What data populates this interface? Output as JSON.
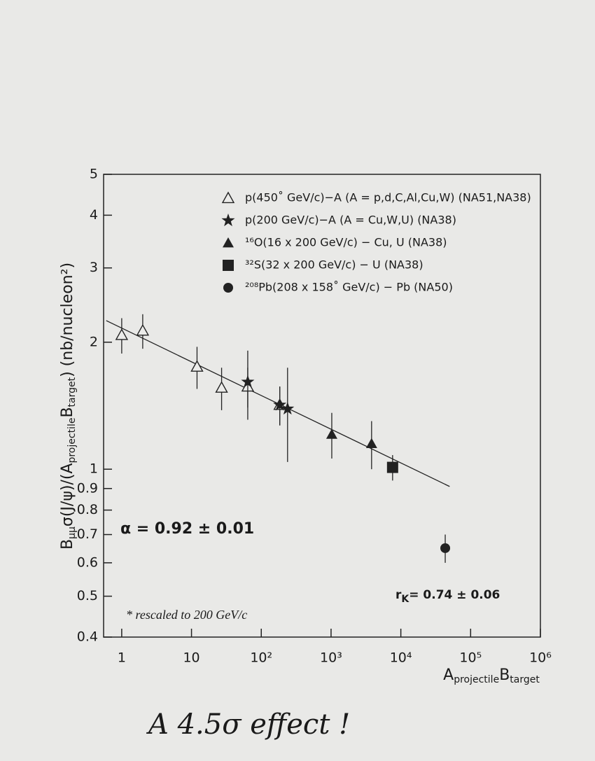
{
  "chart_data": {
    "type": "scatter",
    "x_label": [
      "A",
      "projectile",
      "B",
      "target"
    ],
    "y_label": [
      "B",
      "μμ",
      "σ(J/ψ)/(A",
      "projectile",
      "B",
      "target",
      ") (nb/nucleon²)"
    ],
    "xlog": true,
    "ylog": true,
    "xlim": [
      0.55,
      1000000
    ],
    "ylim": [
      0.4,
      5
    ],
    "xticks": [
      1,
      10,
      {
        "value": 100,
        "label": "10²"
      },
      {
        "value": 1000,
        "label": "10³"
      },
      {
        "value": 10000,
        "label": "10⁴"
      },
      {
        "value": 100000,
        "label": "10⁵"
      },
      {
        "value": 1000000,
        "label": "10⁶"
      }
    ],
    "yticks": [
      0.4,
      0.5,
      0.6,
      0.7,
      0.8,
      0.9,
      1,
      2,
      3,
      4,
      5
    ],
    "legend": "upper right",
    "series": [
      {
        "name": "p(450˚ GeV/c)−A (A = p,d,C,Al,Cu,W) (NA51,NA38)",
        "marker": "open-triangle",
        "color": "#222",
        "x": [
          1,
          2,
          12,
          27,
          64,
          184
        ],
        "values": [
          2.08,
          2.13,
          1.75,
          1.56,
          1.57,
          1.42
        ],
        "errors": [
          0.2,
          0.2,
          0.2,
          0.18,
          0.17,
          0.15
        ]
      },
      {
        "name": "p(200 GeV/c)−A (A = Cu,W,U) (NA38)",
        "marker": "star",
        "color": "#222",
        "x": [
          64,
          184,
          238
        ],
        "values": [
          1.61,
          1.42,
          1.39
        ],
        "errors": [
          0.3,
          0.15,
          0.35
        ]
      },
      {
        "name": "¹⁶O(16 x 200 GeV/c) − Cu, U (NA38)",
        "marker": "triangle",
        "color": "#222",
        "x": [
          1024,
          3808
        ],
        "values": [
          1.21,
          1.15
        ],
        "errors": [
          0.15,
          0.15
        ]
      },
      {
        "name": "³²S(32 x 200 GeV/c) − U (NA38)",
        "marker": "square",
        "color": "#222",
        "x": [
          7616
        ],
        "values": [
          1.01
        ],
        "errors": [
          0.07
        ]
      },
      {
        "name": "²⁰⁸Pb(208 x 158˚ GeV/c) − Pb (NA50)",
        "marker": "circle",
        "color": "#222",
        "x": [
          43264
        ],
        "values": [
          0.65
        ],
        "errors": [
          0.05
        ]
      }
    ],
    "fit": {
      "x": [
        0.6,
        50000
      ],
      "values": [
        2.25,
        0.91
      ]
    },
    "alpha_text": "α = 0.92 ± 0.01",
    "rk_text": [
      "r",
      "K",
      "= 0.74 ± 0.06"
    ],
    "footnote": "* rescaled to 200 GeV/c",
    "handwritten": "A 4.5σ effect !"
  }
}
